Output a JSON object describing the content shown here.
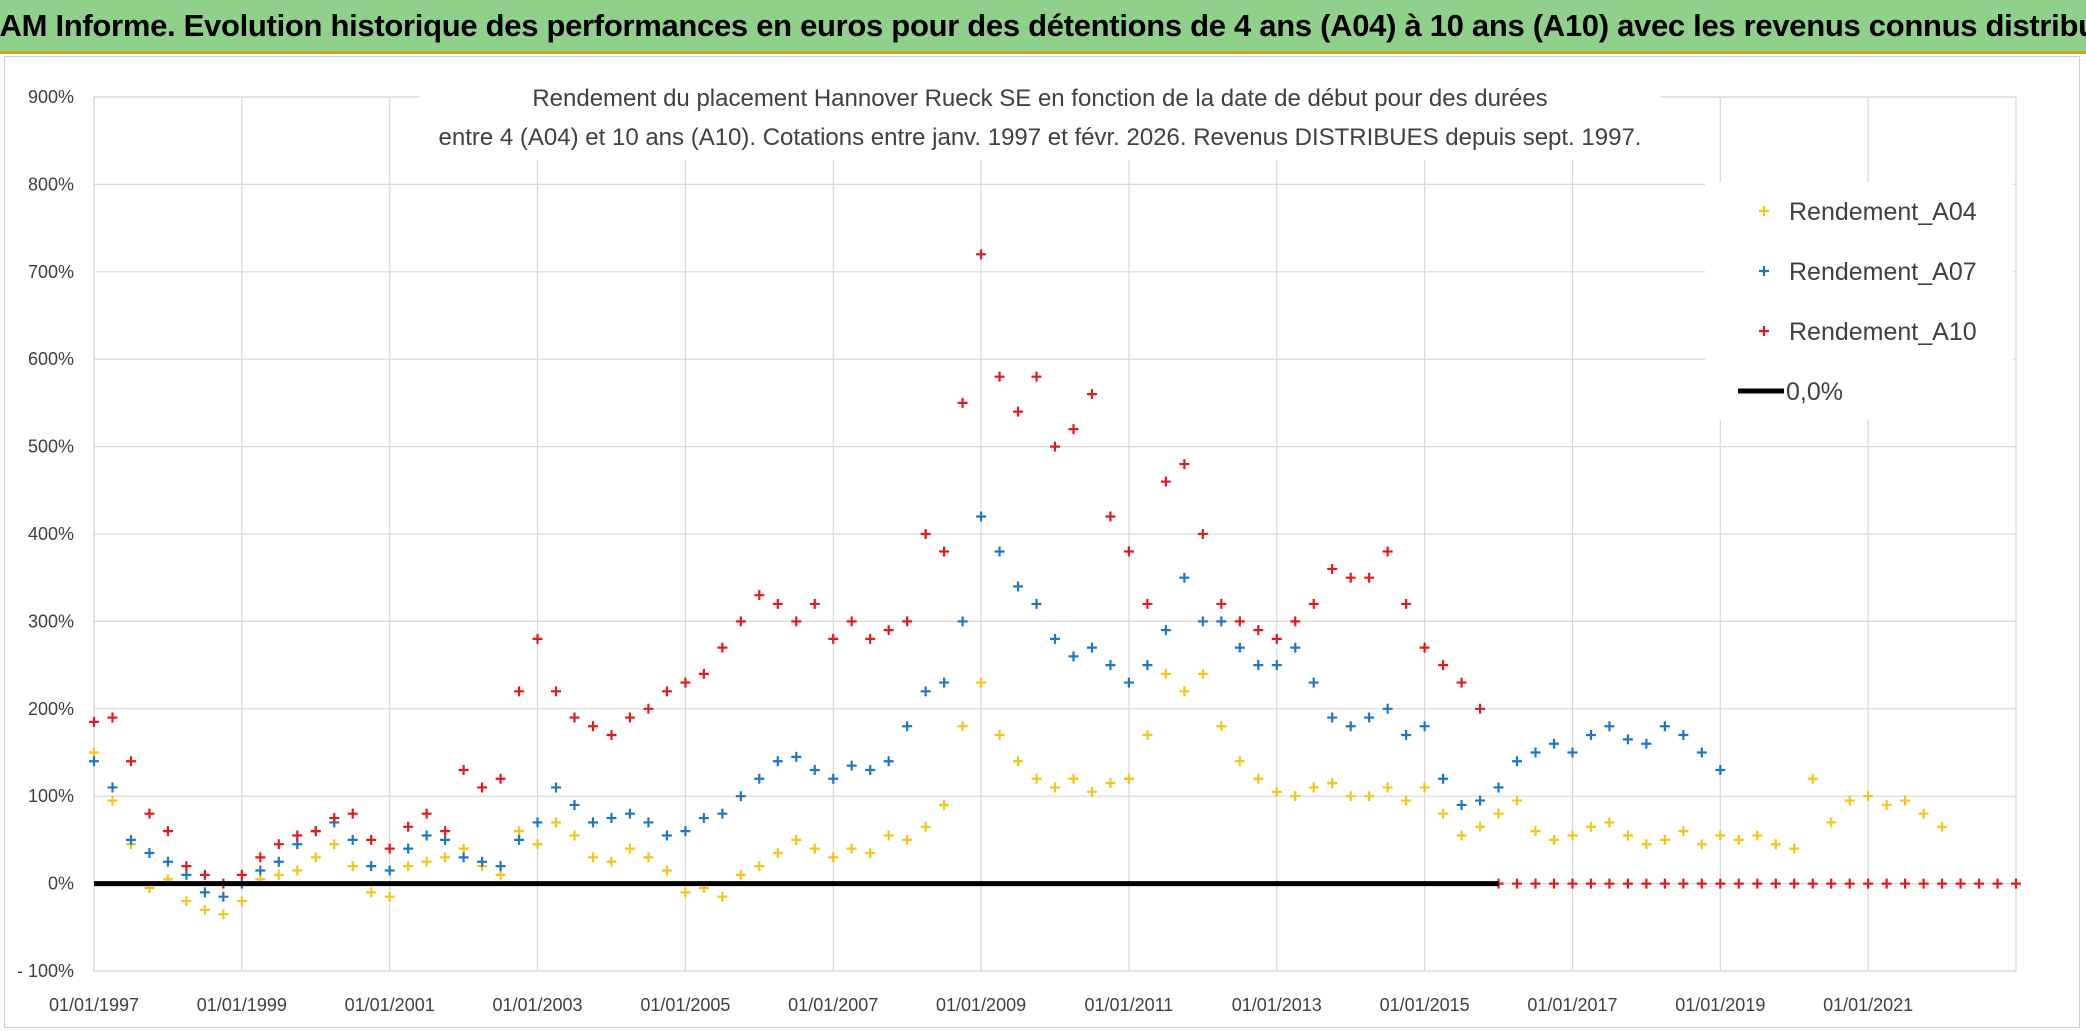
{
  "header": {
    "title": "ADAM Informe. Evolution historique des performances en euros pour des détentions de 4 ans (A04) à 10 ans (A10) avec les revenus connus distribués"
  },
  "chart_data": {
    "type": "scatter",
    "title_line1": "Rendement du placement Hannover Rueck SE en fonction de la date de début pour des durées",
    "title_line2": "entre 4 (A04) et 10 ans (A10). Cotations entre janv. 1997 et févr. 2026. Revenus DISTRIBUES depuis sept. 1997.",
    "xlabel": "",
    "ylabel": "",
    "x_range": [
      1997.0,
      2023.0
    ],
    "ylim": [
      -100,
      900
    ],
    "y_ticks": [
      -100,
      0,
      100,
      200,
      300,
      400,
      500,
      600,
      700,
      800,
      900
    ],
    "y_tick_labels": [
      "- 100%",
      "0%",
      "100%",
      "200%",
      "300%",
      "400%",
      "500%",
      "600%",
      "700%",
      "800%",
      "900%"
    ],
    "x_ticks": [
      1997,
      1999,
      2001,
      2003,
      2005,
      2007,
      2009,
      2011,
      2013,
      2015,
      2017,
      2019,
      2021
    ],
    "x_tick_labels": [
      "01/01/1997",
      "01/01/1999",
      "01/01/2001",
      "01/01/2003",
      "01/01/2005",
      "01/01/2007",
      "01/01/2009",
      "01/01/2011",
      "01/01/2013",
      "01/01/2015",
      "01/01/2017",
      "01/01/2019",
      "01/01/2021"
    ],
    "grid": true,
    "legend": "top-right",
    "series": [
      {
        "name": "Rendement_A04",
        "color": "#f5c518",
        "marker": "plus",
        "x": [
          1997.0,
          1997.25,
          1997.5,
          1997.75,
          1998.0,
          1998.25,
          1998.5,
          1998.75,
          1999.0,
          1999.25,
          1999.5,
          1999.75,
          2000.0,
          2000.25,
          2000.5,
          2000.75,
          2001.0,
          2001.25,
          2001.5,
          2001.75,
          2002.0,
          2002.25,
          2002.5,
          2002.75,
          2003.0,
          2003.25,
          2003.5,
          2003.75,
          2004.0,
          2004.25,
          2004.5,
          2004.75,
          2005.0,
          2005.25,
          2005.5,
          2005.75,
          2006.0,
          2006.25,
          2006.5,
          2006.75,
          2007.0,
          2007.25,
          2007.5,
          2007.75,
          2008.0,
          2008.25,
          2008.5,
          2008.75,
          2009.0,
          2009.25,
          2009.5,
          2009.75,
          2010.0,
          2010.25,
          2010.5,
          2010.75,
          2011.0,
          2011.25,
          2011.5,
          2011.75,
          2012.0,
          2012.25,
          2012.5,
          2012.75,
          2013.0,
          2013.25,
          2013.5,
          2013.75,
          2014.0,
          2014.25,
          2014.5,
          2014.75,
          2015.0,
          2015.25,
          2015.5,
          2015.75,
          2016.0,
          2016.25,
          2016.5,
          2016.75,
          2017.0,
          2017.25,
          2017.5,
          2017.75,
          2018.0,
          2018.25,
          2018.5,
          2018.75,
          2019.0,
          2019.25,
          2019.5,
          2019.75,
          2020.0,
          2020.25,
          2020.5,
          2020.75,
          2021.0,
          2021.25,
          2021.5,
          2021.75,
          2022.0
        ],
        "y": [
          150,
          95,
          45,
          -5,
          5,
          -20,
          -30,
          -35,
          -20,
          5,
          10,
          15,
          30,
          45,
          20,
          -10,
          -15,
          20,
          25,
          30,
          40,
          20,
          10,
          60,
          45,
          70,
          55,
          30,
          25,
          40,
          30,
          15,
          -10,
          -5,
          -15,
          10,
          20,
          35,
          50,
          40,
          30,
          40,
          35,
          55,
          50,
          65,
          90,
          180,
          230,
          170,
          140,
          120,
          110,
          120,
          105,
          115,
          120,
          170,
          240,
          220,
          240,
          180,
          140,
          120,
          105,
          100,
          110,
          115,
          100,
          100,
          110,
          95,
          110,
          80,
          55,
          65,
          80,
          95,
          60,
          50,
          55,
          65,
          70,
          55,
          45,
          50,
          60,
          45,
          55,
          50,
          55,
          45,
          40,
          120,
          70,
          95,
          100,
          90,
          95,
          80,
          65
        ]
      },
      {
        "name": "Rendement_A07",
        "color": "#1f77c4",
        "marker": "plus",
        "x": [
          1997.0,
          1997.25,
          1997.5,
          1997.75,
          1998.0,
          1998.25,
          1998.5,
          1998.75,
          1999.0,
          1999.25,
          1999.5,
          1999.75,
          2000.0,
          2000.25,
          2000.5,
          2000.75,
          2001.0,
          2001.25,
          2001.5,
          2001.75,
          2002.0,
          2002.25,
          2002.5,
          2002.75,
          2003.0,
          2003.25,
          2003.5,
          2003.75,
          2004.0,
          2004.25,
          2004.5,
          2004.75,
          2005.0,
          2005.25,
          2005.5,
          2005.75,
          2006.0,
          2006.25,
          2006.5,
          2006.75,
          2007.0,
          2007.25,
          2007.5,
          2007.75,
          2008.0,
          2008.25,
          2008.5,
          2008.75,
          2009.0,
          2009.25,
          2009.5,
          2009.75,
          2010.0,
          2010.25,
          2010.5,
          2010.75,
          2011.0,
          2011.25,
          2011.5,
          2011.75,
          2012.0,
          2012.25,
          2012.5,
          2012.75,
          2013.0,
          2013.25,
          2013.5,
          2013.75,
          2014.0,
          2014.25,
          2014.5,
          2014.75,
          2015.0,
          2015.25,
          2015.5,
          2015.75,
          2016.0,
          2016.25,
          2016.5,
          2016.75,
          2017.0,
          2017.25,
          2017.5,
          2017.75,
          2018.0,
          2018.25,
          2018.5,
          2018.75,
          2019.0
        ],
        "y": [
          140,
          110,
          50,
          35,
          25,
          10,
          -10,
          -15,
          0,
          15,
          25,
          45,
          60,
          70,
          50,
          20,
          15,
          40,
          55,
          50,
          30,
          25,
          20,
          50,
          70,
          110,
          90,
          70,
          75,
          80,
          70,
          55,
          60,
          75,
          80,
          100,
          120,
          140,
          145,
          130,
          120,
          135,
          130,
          140,
          180,
          220,
          230,
          300,
          420,
          380,
          340,
          320,
          280,
          260,
          270,
          250,
          230,
          250,
          290,
          350,
          300,
          300,
          270,
          250,
          250,
          270,
          230,
          190,
          180,
          190,
          200,
          170,
          180,
          120,
          90,
          95,
          110,
          140,
          150,
          160,
          150,
          170,
          180,
          165,
          160,
          180,
          170,
          150,
          130
        ]
      },
      {
        "name": "Rendement_A10",
        "color": "#e31a1c",
        "marker": "plus",
        "x": [
          1997.0,
          1997.25,
          1997.5,
          1997.75,
          1998.0,
          1998.25,
          1998.5,
          1998.75,
          1999.0,
          1999.25,
          1999.5,
          1999.75,
          2000.0,
          2000.25,
          2000.5,
          2000.75,
          2001.0,
          2001.25,
          2001.5,
          2001.75,
          2002.0,
          2002.25,
          2002.5,
          2002.75,
          2003.0,
          2003.25,
          2003.5,
          2003.75,
          2004.0,
          2004.25,
          2004.5,
          2004.75,
          2005.0,
          2005.25,
          2005.5,
          2005.75,
          2006.0,
          2006.25,
          2006.5,
          2006.75,
          2007.0,
          2007.25,
          2007.5,
          2007.75,
          2008.0,
          2008.25,
          2008.5,
          2008.75,
          2009.0,
          2009.25,
          2009.5,
          2009.75,
          2010.0,
          2010.25,
          2010.5,
          2010.75,
          2011.0,
          2011.25,
          2011.5,
          2011.75,
          2012.0,
          2012.25,
          2012.5,
          2012.75,
          2013.0,
          2013.25,
          2013.5,
          2013.75,
          2014.0,
          2014.25,
          2014.5,
          2014.75,
          2015.0,
          2015.25,
          2015.5,
          2015.75,
          2016.0,
          2016.25,
          2016.5,
          2016.75,
          2017.0,
          2017.25,
          2017.5,
          2017.75,
          2018.0,
          2018.25,
          2018.5,
          2018.75,
          2019.0,
          2019.25,
          2019.5,
          2019.75,
          2020.0,
          2020.25,
          2020.5,
          2020.75,
          2021.0,
          2021.25,
          2021.5,
          2021.75,
          2022.0,
          2022.25,
          2022.5,
          2022.75,
          2023.0
        ],
        "y": [
          185,
          190,
          140,
          80,
          60,
          20,
          10,
          0,
          10,
          30,
          45,
          55,
          60,
          75,
          80,
          50,
          40,
          65,
          80,
          60,
          130,
          110,
          120,
          220,
          280,
          220,
          190,
          180,
          170,
          190,
          200,
          220,
          230,
          240,
          270,
          300,
          330,
          320,
          300,
          320,
          280,
          300,
          280,
          290,
          300,
          400,
          380,
          550,
          720,
          580,
          540,
          580,
          500,
          520,
          560,
          420,
          380,
          320,
          460,
          480,
          400,
          320,
          300,
          290,
          280,
          300,
          320,
          360,
          350,
          350,
          380,
          320,
          270,
          250,
          230,
          200,
          0,
          0,
          0,
          0,
          0,
          0,
          0,
          0,
          0,
          0,
          0,
          0,
          0,
          0,
          0,
          0,
          0,
          0,
          0,
          0,
          0,
          0,
          0,
          0,
          0,
          0,
          0,
          0,
          0
        ]
      },
      {
        "name": "0,0%",
        "color": "#000000",
        "marker": "line",
        "x": [
          1997.0,
          2016.0
        ],
        "y": [
          0,
          0
        ]
      }
    ]
  }
}
